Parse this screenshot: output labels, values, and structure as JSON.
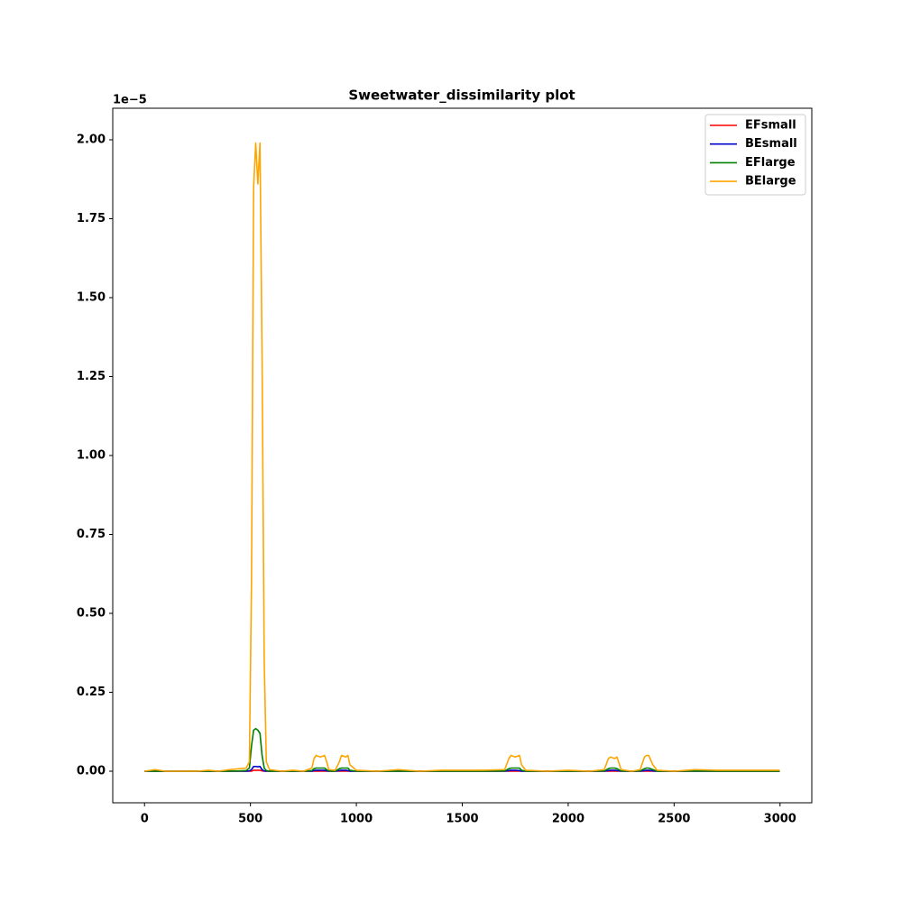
{
  "chart_data": {
    "type": "line",
    "title": "Sweetwater_dissimilarity plot",
    "y_offset_label": "1e−5",
    "x": [
      0,
      50,
      100,
      150,
      200,
      250,
      300,
      350,
      400,
      450,
      480,
      495,
      505,
      515,
      525,
      535,
      545,
      555,
      565,
      575,
      590,
      650,
      700,
      750,
      790,
      800,
      810,
      830,
      850,
      860,
      870,
      900,
      920,
      930,
      950,
      960,
      970,
      1000,
      1100,
      1200,
      1300,
      1400,
      1500,
      1600,
      1700,
      1720,
      1730,
      1750,
      1770,
      1780,
      1800,
      1900,
      2000,
      2100,
      2170,
      2190,
      2200,
      2220,
      2230,
      2250,
      2300,
      2340,
      2360,
      2370,
      2380,
      2400,
      2420,
      2500,
      2600,
      2700,
      2800,
      2900,
      2999
    ],
    "series": [
      {
        "name": "EFsmall",
        "color": "#ff0000",
        "values": [
          0,
          0,
          0,
          0,
          0,
          0,
          0,
          0,
          0,
          0,
          0,
          0,
          0,
          0.003,
          0.003,
          0.003,
          0.003,
          0.001,
          0,
          0,
          0,
          0,
          0,
          0,
          0,
          0,
          0,
          0,
          0,
          0,
          0,
          0,
          0,
          0,
          0,
          0,
          0,
          0,
          0,
          0,
          0,
          0,
          0,
          0,
          0,
          0,
          0,
          0,
          0,
          0,
          0,
          0,
          0,
          0,
          0,
          0,
          0,
          0,
          0,
          0,
          0,
          0,
          0,
          0,
          0,
          0,
          0,
          0,
          0,
          0,
          0,
          0,
          0
        ]
      },
      {
        "name": "BEsmall",
        "color": "#0000cc",
        "values": [
          0,
          0,
          0,
          0,
          0,
          0,
          0,
          0,
          0,
          0,
          0,
          0.001,
          0.005,
          0.015,
          0.015,
          0.014,
          0.015,
          0.005,
          0.001,
          0,
          0,
          0,
          0,
          0,
          0,
          0.002,
          0.003,
          0.003,
          0.003,
          0.001,
          0,
          0,
          0.002,
          0.003,
          0.003,
          0.002,
          0,
          0,
          0,
          0,
          0,
          0,
          0,
          0,
          0,
          0.002,
          0.003,
          0.003,
          0.002,
          0,
          0,
          0,
          0,
          0,
          0,
          0.002,
          0.003,
          0.003,
          0.002,
          0,
          0,
          0,
          0.002,
          0.003,
          0.003,
          0.001,
          0,
          0,
          0,
          0,
          0,
          0,
          0
        ]
      },
      {
        "name": "EFlarge",
        "color": "#008000",
        "values": [
          0,
          0,
          0,
          0,
          0,
          0,
          0,
          0,
          0,
          0.001,
          0.002,
          0.01,
          0.08,
          0.13,
          0.135,
          0.13,
          0.12,
          0.05,
          0.01,
          0.002,
          0,
          0,
          0,
          0,
          0.002,
          0.008,
          0.01,
          0.01,
          0.01,
          0.005,
          0.001,
          0,
          0.008,
          0.01,
          0.01,
          0.01,
          0.003,
          0,
          0,
          0,
          0,
          0,
          0,
          0,
          0.001,
          0.008,
          0.01,
          0.01,
          0.01,
          0.003,
          0,
          0,
          0,
          0,
          0.001,
          0.008,
          0.01,
          0.01,
          0.008,
          0.001,
          0,
          0.001,
          0.008,
          0.01,
          0.01,
          0.005,
          0,
          0,
          0.001,
          0,
          0,
          0,
          0
        ]
      },
      {
        "name": "BElarge",
        "color": "#ffa500",
        "values": [
          0,
          0.005,
          0,
          0,
          0,
          0,
          0.003,
          0,
          0.005,
          0.008,
          0.01,
          0.03,
          0.6,
          1.85,
          1.99,
          1.86,
          1.99,
          1.3,
          0.35,
          0.03,
          0.005,
          0,
          0.003,
          0,
          0.01,
          0.04,
          0.05,
          0.045,
          0.05,
          0.03,
          0.005,
          0.003,
          0.03,
          0.05,
          0.045,
          0.05,
          0.02,
          0.003,
          0,
          0.005,
          0,
          0.003,
          0.003,
          0.003,
          0.005,
          0.04,
          0.05,
          0.045,
          0.05,
          0.02,
          0.003,
          0,
          0.003,
          0,
          0.005,
          0.04,
          0.045,
          0.04,
          0.045,
          0.005,
          0,
          0.005,
          0.045,
          0.05,
          0.05,
          0.02,
          0.003,
          0,
          0.005,
          0.003,
          0.003,
          0.003,
          0.003
        ]
      }
    ],
    "xlim": [
      -150,
      3150
    ],
    "ylim": [
      -0.1,
      2.1
    ],
    "xticks": [
      0,
      500,
      1000,
      1500,
      2000,
      2500,
      3000
    ],
    "yticks": [
      {
        "value": 0,
        "label": "0.00"
      },
      {
        "value": 0.25,
        "label": "0.25"
      },
      {
        "value": 0.5,
        "label": "0.50"
      },
      {
        "value": 0.75,
        "label": "0.75"
      },
      {
        "value": 1,
        "label": "1.00"
      },
      {
        "value": 1.25,
        "label": "1.25"
      },
      {
        "value": 1.5,
        "label": "1.50"
      },
      {
        "value": 1.75,
        "label": "1.75"
      },
      {
        "value": 2,
        "label": "2.00"
      }
    ],
    "grid": false,
    "legend": "upper-right"
  }
}
